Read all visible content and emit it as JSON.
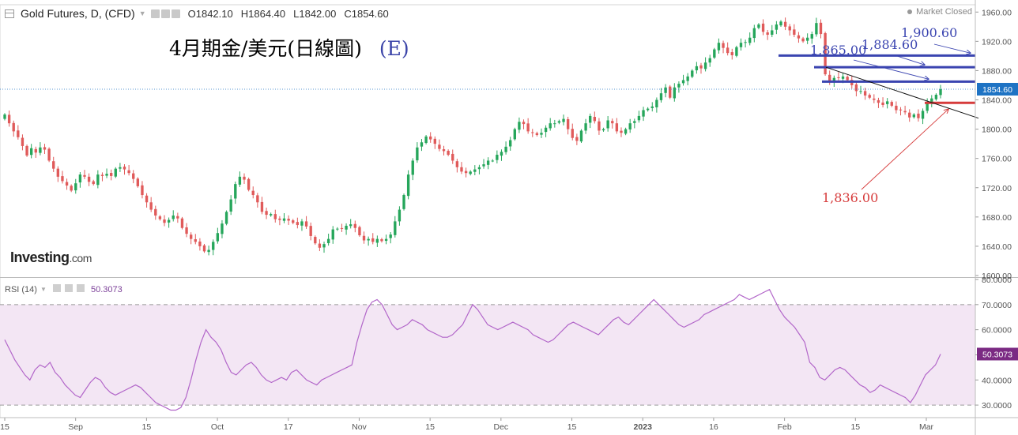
{
  "header": {
    "title": "Gold Futures, D, (CFD)",
    "open": "O1842.10",
    "high": "H1864.40",
    "low": "L1842.00",
    "close": "C1854.60",
    "market_status": "Market Closed"
  },
  "annotation_title": "4月期金/美元(日線圖)",
  "annotation_tag": "(E)",
  "logo": {
    "main": "Investing",
    "suffix": ".com"
  },
  "colors": {
    "up": "#26a65b",
    "down": "#e05a5a",
    "rsi_line": "#b266c9",
    "rsi_band": "#f3e6f4",
    "blue_level": "#3a44b0",
    "red_level": "#d63b3b",
    "last_price_bg": "#1e73c4",
    "rsi_value_bg": "#7b2a83"
  },
  "chart_data": {
    "type": "candlestick",
    "title": "Gold Futures, D, (CFD)",
    "ylim": [
      1600,
      1970
    ],
    "y_ticks": [
      "1600.00",
      "1640.00",
      "1680.00",
      "1720.00",
      "1760.00",
      "1800.00",
      "1840.00",
      "1880.00",
      "1920.00",
      "1960.00"
    ],
    "x_ticks": [
      "15",
      "Sep",
      "15",
      "Oct",
      "17",
      "Nov",
      "15",
      "Dec",
      "15",
      "2023",
      "16",
      "Feb",
      "15",
      "Mar"
    ],
    "last_price": "1854.60",
    "closes": [
      1820,
      1808,
      1797,
      1789,
      1777,
      1764,
      1774,
      1768,
      1775,
      1772,
      1757,
      1746,
      1735,
      1729,
      1723,
      1716,
      1726,
      1738,
      1735,
      1728,
      1725,
      1738,
      1736,
      1739,
      1736,
      1746,
      1748,
      1745,
      1740,
      1732,
      1722,
      1710,
      1700,
      1690,
      1682,
      1677,
      1672,
      1676,
      1682,
      1678,
      1665,
      1657,
      1650,
      1646,
      1640,
      1633,
      1635,
      1646,
      1658,
      1671,
      1687,
      1704,
      1725,
      1735,
      1731,
      1717,
      1710,
      1700,
      1687,
      1683,
      1684,
      1677,
      1676,
      1678,
      1675,
      1672,
      1669,
      1674,
      1667,
      1654,
      1644,
      1638,
      1643,
      1650,
      1663,
      1664,
      1664,
      1668,
      1670,
      1665,
      1655,
      1648,
      1650,
      1646,
      1650,
      1647,
      1650,
      1656,
      1674,
      1690,
      1710,
      1738,
      1757,
      1775,
      1782,
      1790,
      1786,
      1780,
      1773,
      1770,
      1765,
      1757,
      1748,
      1742,
      1740,
      1742,
      1745,
      1748,
      1752,
      1757,
      1757,
      1765,
      1769,
      1776,
      1785,
      1800,
      1810,
      1807,
      1797,
      1795,
      1792,
      1795,
      1802,
      1808,
      1808,
      1811,
      1814,
      1800,
      1788,
      1784,
      1798,
      1808,
      1818,
      1811,
      1798,
      1800,
      1812,
      1808,
      1797,
      1795,
      1800,
      1808,
      1811,
      1818,
      1826,
      1828,
      1831,
      1840,
      1849,
      1857,
      1843,
      1857,
      1862,
      1867,
      1872,
      1880,
      1886,
      1883,
      1891,
      1897,
      1909,
      1918,
      1911,
      1904,
      1901,
      1912,
      1918,
      1919,
      1925,
      1938,
      1943,
      1933,
      1929,
      1935,
      1943,
      1947,
      1940,
      1935,
      1929,
      1924,
      1920,
      1925,
      1930,
      1945,
      1930,
      1875,
      1865,
      1870,
      1870,
      1872,
      1867,
      1860,
      1852,
      1852,
      1846,
      1843,
      1840,
      1836,
      1833,
      1838,
      1832,
      1826,
      1826,
      1823,
      1816,
      1820,
      1815,
      1825,
      1835,
      1842,
      1847,
      1854.6
    ],
    "horizontal_levels": [
      {
        "label": "1,900.60",
        "value": 1900.6,
        "color": "blue"
      },
      {
        "label": "1,884.60",
        "value": 1884.6,
        "color": "blue"
      },
      {
        "label": "1,865.00",
        "value": 1865.0,
        "color": "blue"
      },
      {
        "label": "1,836.00",
        "value": 1836.0,
        "color": "red"
      }
    ]
  },
  "rsi": {
    "label": "RSI (14)",
    "value": "50.3073",
    "ylim": [
      25,
      80
    ],
    "band": [
      30,
      70
    ],
    "y_ticks": [
      "30.0000",
      "40.0000",
      "50.0000",
      "60.0000",
      "70.0000",
      "80.0000"
    ],
    "values": [
      56,
      52,
      48,
      45,
      42,
      40,
      44,
      46,
      45,
      47,
      43,
      41,
      38,
      36,
      34,
      33,
      36,
      39,
      41,
      40,
      37,
      35,
      34,
      35,
      36,
      37,
      38,
      37,
      35,
      33,
      31,
      30,
      29,
      28,
      28,
      29,
      33,
      40,
      48,
      55,
      60,
      57,
      55,
      52,
      47,
      43,
      42,
      44,
      46,
      47,
      45,
      42,
      40,
      39,
      40,
      41,
      40,
      43,
      44,
      42,
      40,
      39,
      38,
      40,
      41,
      42,
      43,
      44,
      45,
      46,
      55,
      62,
      68,
      71,
      72,
      70,
      66,
      62,
      60,
      61,
      62,
      64,
      63,
      62,
      60,
      59,
      58,
      57,
      57,
      58,
      60,
      62,
      66,
      70,
      68,
      65,
      62,
      61,
      60,
      61,
      62,
      63,
      62,
      61,
      60,
      58,
      57,
      56,
      55,
      56,
      58,
      60,
      62,
      63,
      62,
      61,
      60,
      59,
      58,
      60,
      62,
      64,
      65,
      63,
      62,
      64,
      66,
      68,
      70,
      72,
      70,
      68,
      66,
      64,
      62,
      61,
      62,
      63,
      64,
      66,
      67,
      68,
      69,
      70,
      71,
      72,
      74,
      73,
      72,
      73,
      74,
      75,
      76,
      72,
      68,
      65,
      63,
      61,
      58,
      55,
      47,
      45,
      41,
      40,
      42,
      44,
      45,
      44,
      42,
      40,
      38,
      37,
      35,
      36,
      38,
      37,
      36,
      35,
      34,
      33,
      31,
      34,
      38,
      42,
      44,
      46,
      50.3
    ]
  }
}
